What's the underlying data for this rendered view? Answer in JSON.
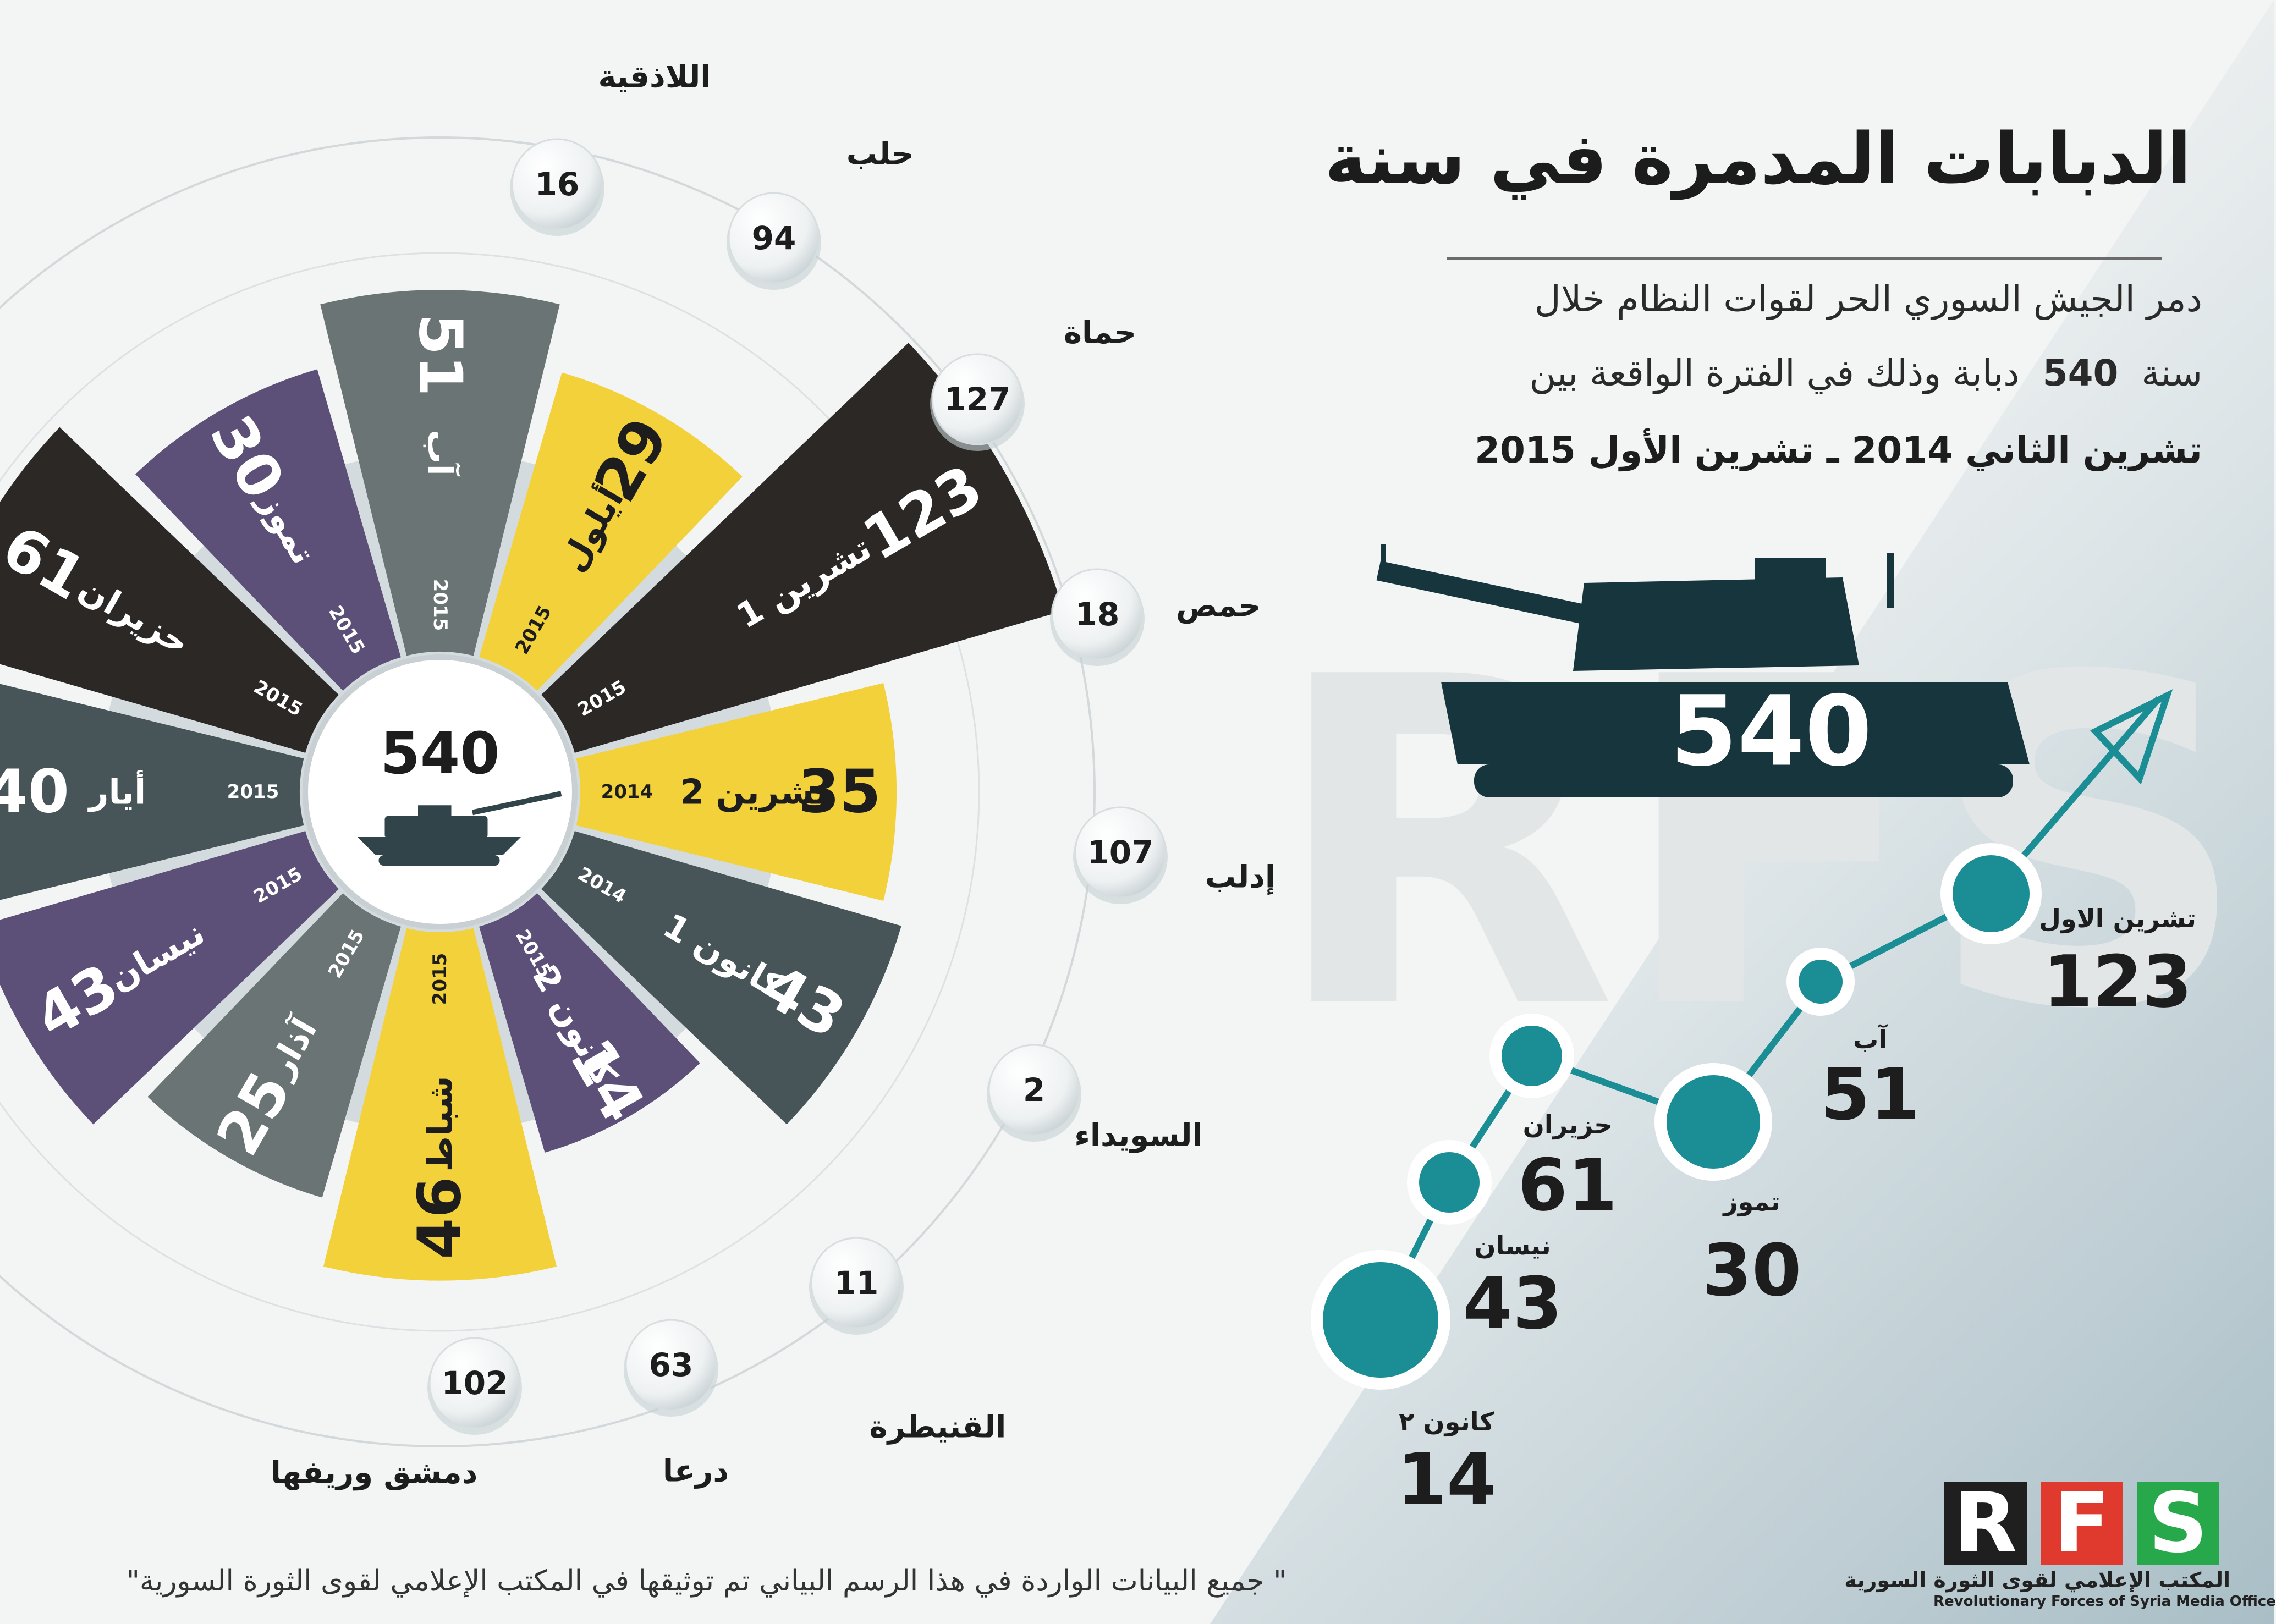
{
  "title": "الدبابات المدمرة في سنة",
  "description": {
    "line1": "دمر الجيش السوري الحر لقوات النظام خلال",
    "line2_prefix": "سنة",
    "line2_number": "540",
    "line2_suffix": "دبابة وذلك في الفترة الواقعة بين",
    "line3": "تشرين الثاني 2014 ـ تشرين الأول 2015"
  },
  "total": "540",
  "watermark": "RFS",
  "footer": "\" جميع البيانات الواردة في هذا الرسم البياني تم توثيقها في المكتب الإعلامي لقوى الثورة السورية\"",
  "logo": {
    "letters": [
      "R",
      "F",
      "S"
    ],
    "colors": [
      "#e03a2f",
      "#f39c12",
      "#27a84a"
    ],
    "arabic": "المكتب الإعلامي لقوى الثورة السورية",
    "english": "Revolutionary Forces of Syria Media Office"
  },
  "colors": {
    "dark": "#2c2826",
    "yellow": "#f2d13a",
    "gray": "#6a7474",
    "slate": "#475558",
    "purple": "#5d5078",
    "teal": "#1b8e95"
  },
  "chart_data": [
    {
      "type": "polar-bar",
      "center_label": "540",
      "categories": [
        {
          "label": "آب",
          "year": "2015",
          "value": 51,
          "color": "#6a7474"
        },
        {
          "label": "أيلول",
          "year": "2015",
          "value": 29,
          "color": "#f2d13a"
        },
        {
          "label": "تشرين 1",
          "year": "2015",
          "value": 123,
          "color": "#2c2826"
        },
        {
          "label": "تشرين 2",
          "year": "2014",
          "value": 35,
          "color": "#f2d13a"
        },
        {
          "label": "كانون 1",
          "year": "2014",
          "value": 43,
          "color": "#475558"
        },
        {
          "label": "كانون 2",
          "year": "2015",
          "value": 14,
          "color": "#5d5078"
        },
        {
          "label": "شباط",
          "year": "2015",
          "value": 46,
          "color": "#f2d13a"
        },
        {
          "label": "آذار",
          "year": "2015",
          "value": 25,
          "color": "#6a7474"
        },
        {
          "label": "نيسان",
          "year": "2015",
          "value": 43,
          "color": "#5d5078"
        },
        {
          "label": "أيار",
          "year": "2015",
          "value": 40,
          "color": "#475558"
        },
        {
          "label": "حزيران",
          "year": "2015",
          "value": 61,
          "color": "#2c2826"
        },
        {
          "label": "تموز",
          "year": "2015",
          "value": 30,
          "color": "#5d5078"
        }
      ]
    },
    {
      "type": "bubble-ring",
      "categories": [
        {
          "label": "اللاذقية",
          "value": 16
        },
        {
          "label": "حلب",
          "value": 94
        },
        {
          "label": "حماة",
          "value": 127
        },
        {
          "label": "حمص",
          "value": 18
        },
        {
          "label": "إدلب",
          "value": 107
        },
        {
          "label": "السويداء",
          "value": 2
        },
        {
          "label": "القنيطرة",
          "value": 11
        },
        {
          "label": "درعا",
          "value": 63
        },
        {
          "label": "دمشق وريفها",
          "value": 102
        }
      ]
    },
    {
      "type": "line",
      "points": [
        {
          "label": "كانون ٢",
          "value": 14
        },
        {
          "label": "نيسان",
          "value": 43
        },
        {
          "label": "حزيران",
          "value": 61
        },
        {
          "label": "تموز",
          "value": 30
        },
        {
          "label": "آب",
          "value": 51
        },
        {
          "label": "تشرين الاول",
          "value": 123
        }
      ]
    }
  ]
}
